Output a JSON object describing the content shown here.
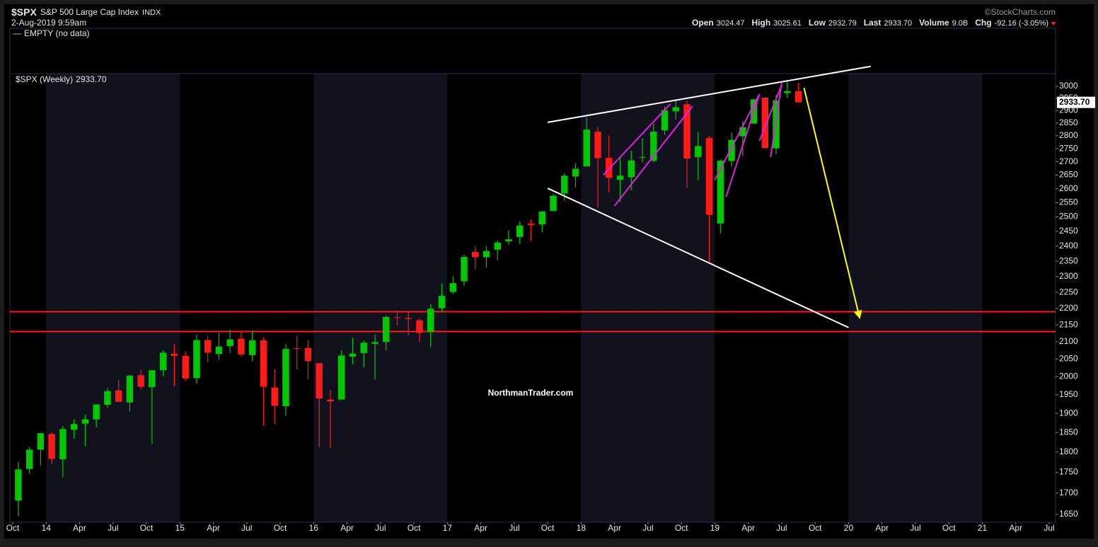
{
  "header": {
    "symbol": "$SPX",
    "name": "S&P 500 Large Cap Index",
    "exchange": "INDX",
    "date": "2-Aug-2019 9:59am",
    "source": "©StockCharts.com",
    "quote": [
      {
        "label": "Open",
        "value": "3024.47"
      },
      {
        "label": "High",
        "value": "3025.61"
      },
      {
        "label": "Low",
        "value": "2932.79"
      },
      {
        "label": "Last",
        "value": "2933.70"
      },
      {
        "label": "Volume",
        "value": "9.0B"
      },
      {
        "label": "Chg",
        "value": "-92.16 (-3.05%)"
      }
    ],
    "panel_label": "EMPTY (no data)"
  },
  "chart_data": {
    "type": "candlestick",
    "log_scale": true,
    "grid": false,
    "up_color": "#00c800",
    "down_color": "#ff1a1a",
    "annotation": "NorthmanTrader.com",
    "x": [
      "2013-10",
      "2013-11",
      "2013-12",
      "2014-01",
      "2014-02",
      "2014-03",
      "2014-04",
      "2014-05",
      "2014-06",
      "2014-07",
      "2014-08",
      "2014-09",
      "2014-10",
      "2014-11",
      "2014-12",
      "2015-01",
      "2015-02",
      "2015-03",
      "2015-04",
      "2015-05",
      "2015-06",
      "2015-07",
      "2015-08",
      "2015-09",
      "2015-10",
      "2015-11",
      "2015-12",
      "2016-01",
      "2016-02",
      "2016-03",
      "2016-04",
      "2016-05",
      "2016-06",
      "2016-07",
      "2016-08",
      "2016-09",
      "2016-10",
      "2016-11",
      "2016-12",
      "2017-01",
      "2017-02",
      "2017-03",
      "2017-04",
      "2017-05",
      "2017-06",
      "2017-07",
      "2017-08",
      "2017-09",
      "2017-10",
      "2017-11",
      "2017-12",
      "2018-01",
      "2018-02",
      "2018-03",
      "2018-04",
      "2018-05",
      "2018-06",
      "2018-07",
      "2018-08",
      "2018-09",
      "2018-10",
      "2018-11",
      "2018-12",
      "2019-01",
      "2019-02",
      "2019-03",
      "2019-04",
      "2019-05",
      "2019-06",
      "2019-07",
      "2019-08"
    ],
    "series": [
      {
        "name": "$SPX (Weekly)",
        "open": [
          1682,
          1758,
          1806,
          1846,
          1782,
          1857,
          1873,
          1884,
          1923,
          1962,
          1929,
          2004,
          1971,
          2018,
          2065,
          2059,
          1996,
          2105,
          2064,
          2087,
          2109,
          2061,
          2104,
          1970,
          1919,
          2081,
          2082,
          2038,
          1937,
          1937,
          2057,
          2067,
          2094,
          2099,
          2173,
          2171,
          2164,
          2129,
          2201,
          2251,
          2285,
          2381,
          2363,
          2388,
          2416,
          2431,
          2477,
          2474,
          2521,
          2583,
          2645,
          2683,
          2816,
          2715,
          2633,
          2643,
          2718,
          2704,
          2821,
          2897,
          2926,
          2718,
          2791,
          2477,
          2703,
          2798,
          2848,
          2953,
          2751,
          2972,
          2980
        ],
        "high": [
          1775,
          1813,
          1849,
          1850,
          1867,
          1884,
          1897,
          1924,
          1968,
          1991,
          2005,
          2019,
          2018,
          2075,
          2093,
          2072,
          2120,
          2118,
          2126,
          2135,
          2130,
          2133,
          2113,
          2021,
          2094,
          2117,
          2104,
          2038,
          1963,
          2075,
          2112,
          2103,
          2121,
          2178,
          2194,
          2188,
          2169,
          2214,
          2278,
          2301,
          2371,
          2401,
          2399,
          2419,
          2454,
          2484,
          2491,
          2520,
          2582,
          2657,
          2695,
          2873,
          2835,
          2801,
          2718,
          2742,
          2791,
          2848,
          2917,
          2941,
          2940,
          2816,
          2800,
          2708,
          2813,
          2860,
          2949,
          2955,
          2965,
          3028,
          3014
        ],
        "low": [
          1646,
          1746,
          1767,
          1770,
          1738,
          1834,
          1815,
          1863,
          1915,
          1930,
          1905,
          1964,
          1821,
          2001,
          1973,
          1988,
          1981,
          2040,
          2048,
          2067,
          2057,
          2044,
          1867,
          1872,
          1894,
          2020,
          1993,
          1812,
          1810,
          1937,
          2034,
          2026,
          1992,
          2075,
          2148,
          2119,
          2098,
          2084,
          2188,
          2245,
          2271,
          2323,
          2329,
          2353,
          2405,
          2407,
          2417,
          2446,
          2520,
          2557,
          2605,
          2683,
          2533,
          2586,
          2553,
          2595,
          2698,
          2698,
          2803,
          2864,
          2604,
          2631,
          2347,
          2444,
          2681,
          2722,
          2848,
          2751,
          2729,
          2952,
          2933
        ],
        "close": [
          1757,
          1806,
          1848,
          1783,
          1859,
          1872,
          1884,
          1924,
          1960,
          1931,
          2003,
          1972,
          2018,
          2068,
          2059,
          1995,
          2105,
          2068,
          2086,
          2107,
          2063,
          2104,
          1972,
          1920,
          2079,
          2080,
          2044,
          1940,
          1932,
          2060,
          2065,
          2097,
          2099,
          2174,
          2171,
          2168,
          2126,
          2199,
          2239,
          2279,
          2364,
          2363,
          2384,
          2412,
          2423,
          2470,
          2472,
          2519,
          2575,
          2648,
          2674,
          2824,
          2714,
          2641,
          2648,
          2705,
          2718,
          2816,
          2902,
          2914,
          2712,
          2760,
          2507,
          2704,
          2784,
          2834,
          2946,
          2752,
          2942,
          2980,
          2933.7
        ]
      }
    ],
    "xlim": [
      "2013-10",
      "2021-07"
    ],
    "xticks": [
      {
        "value": "2013-10",
        "label": "Oct"
      },
      {
        "value": "2014-01",
        "label": "14"
      },
      {
        "value": "2014-04",
        "label": "Apr"
      },
      {
        "value": "2014-07",
        "label": "Jul"
      },
      {
        "value": "2014-10",
        "label": "Oct"
      },
      {
        "value": "2015-01",
        "label": "15"
      },
      {
        "value": "2015-04",
        "label": "Apr"
      },
      {
        "value": "2015-07",
        "label": "Jul"
      },
      {
        "value": "2015-10",
        "label": "Oct"
      },
      {
        "value": "2016-01",
        "label": "16"
      },
      {
        "value": "2016-04",
        "label": "Apr"
      },
      {
        "value": "2016-07",
        "label": "Jul"
      },
      {
        "value": "2016-10",
        "label": "Oct"
      },
      {
        "value": "2017-01",
        "label": "17"
      },
      {
        "value": "2017-04",
        "label": "Apr"
      },
      {
        "value": "2017-07",
        "label": "Jul"
      },
      {
        "value": "2017-10",
        "label": "Oct"
      },
      {
        "value": "2018-01",
        "label": "18"
      },
      {
        "value": "2018-04",
        "label": "Apr"
      },
      {
        "value": "2018-07",
        "label": "Jul"
      },
      {
        "value": "2018-10",
        "label": "Oct"
      },
      {
        "value": "2019-01",
        "label": "19"
      },
      {
        "value": "2019-04",
        "label": "Apr"
      },
      {
        "value": "2019-07",
        "label": "Jul"
      },
      {
        "value": "2019-10",
        "label": "Oct"
      },
      {
        "value": "2020-01",
        "label": "20"
      },
      {
        "value": "2020-04",
        "label": "Apr"
      },
      {
        "value": "2020-07",
        "label": "Jul"
      },
      {
        "value": "2020-10",
        "label": "Oct"
      },
      {
        "value": "2021-01",
        "label": "21"
      },
      {
        "value": "2021-04",
        "label": "Apr"
      },
      {
        "value": "2021-07",
        "label": "Jul"
      }
    ],
    "ylim": [
      1632,
      3054
    ],
    "yticks": [
      1650,
      1700,
      1750,
      1800,
      1850,
      1900,
      1950,
      2000,
      2050,
      2100,
      2150,
      2200,
      2250,
      2300,
      2350,
      2400,
      2450,
      2500,
      2550,
      2600,
      2650,
      2700,
      2750,
      2800,
      2850,
      2900,
      2950,
      3000
    ],
    "hlines": [
      {
        "value": 2190,
        "color": "#ff1a1a"
      },
      {
        "value": 2130,
        "color": "#ff1a1a"
      }
    ],
    "trendlines": [
      {
        "color": "#ffffff",
        "points": [
          {
            "x": "2017-10",
            "y": 2853
          },
          {
            "x": "2020-03",
            "y": 3085
          }
        ]
      },
      {
        "color": "#ffffff",
        "points": [
          {
            "x": "2017-10",
            "y": 2602
          },
          {
            "x": "2020-01",
            "y": 2142
          }
        ]
      },
      {
        "color": "#e020e0",
        "points": [
          {
            "x": "2018-03",
            "y": 2651
          },
          {
            "x": "2018-09",
            "y": 2927
          }
        ]
      },
      {
        "color": "#e020e0",
        "points": [
          {
            "x": "2018-04",
            "y": 2539
          },
          {
            "x": "2018-11",
            "y": 2918
          }
        ]
      },
      {
        "color": "#e020e0",
        "points": [
          {
            "x": "2019-01",
            "y": 2633
          },
          {
            "x": "2019-05",
            "y": 2968
          }
        ]
      },
      {
        "color": "#e020e0",
        "points": [
          {
            "x": "2019-02",
            "y": 2571
          },
          {
            "x": "2019-05",
            "y": 2968
          }
        ]
      },
      {
        "color": "#e020e0",
        "points": [
          {
            "x": "2019-05",
            "y": 2780
          },
          {
            "x": "2019-07",
            "y": 3006
          }
        ]
      },
      {
        "color": "#e020e0",
        "points": [
          {
            "x": "2019-06",
            "y": 2718
          },
          {
            "x": "2019-07",
            "y": 3015
          }
        ]
      },
      {
        "color": "#ffff00",
        "arrow": true,
        "points": [
          {
            "x": "2019-09",
            "y": 2994
          },
          {
            "x": "2020-02",
            "y": 2170
          }
        ]
      }
    ]
  }
}
